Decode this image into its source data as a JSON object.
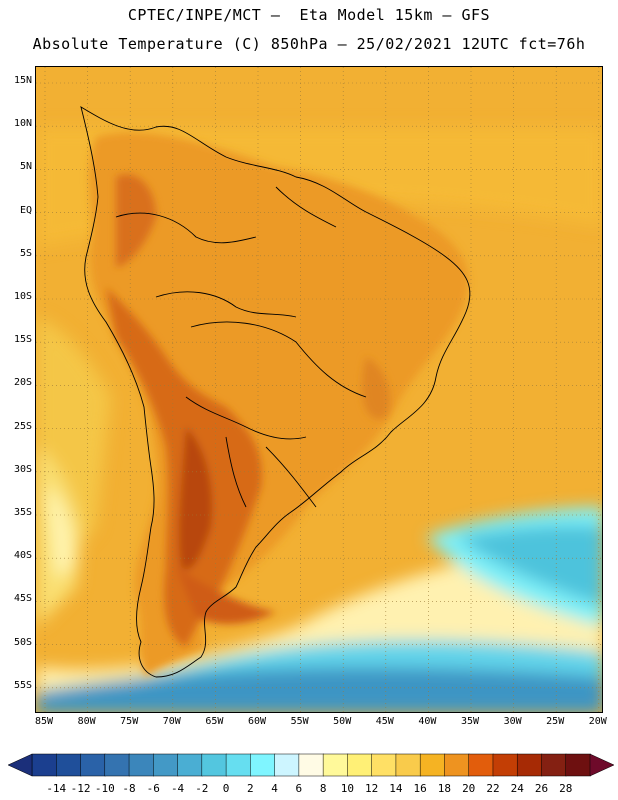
{
  "title_line1": "CPTEC/INPE/MCT —  Eta Model 15km — GFS",
  "title_line2": "Absolute Temperature (C) 850hPa — 25/02/2021 12UTC fct=76h",
  "lat_labels": [
    "15N",
    "10N",
    "5N",
    "EQ",
    "5S",
    "10S",
    "15S",
    "20S",
    "25S",
    "30S",
    "35S",
    "40S",
    "45S",
    "50S",
    "55S"
  ],
  "lon_labels": [
    "85W",
    "80W",
    "75W",
    "70W",
    "65W",
    "60W",
    "55W",
    "50W",
    "45W",
    "40W",
    "35W",
    "30W",
    "25W",
    "20W"
  ],
  "colorbar": {
    "labels": [
      "-14",
      "-12",
      "-10",
      "-8",
      "-6",
      "-4",
      "-2",
      "0",
      "2",
      "4",
      "6",
      "8",
      "10",
      "12",
      "14",
      "16",
      "18",
      "20",
      "22",
      "24",
      "26",
      "28"
    ],
    "colors": [
      "#1b3f8f",
      "#1f4f9a",
      "#2a62a8",
      "#3473b0",
      "#3b86bb",
      "#4399c6",
      "#4aaed3",
      "#53c6df",
      "#66def0",
      "#7ff5ff",
      "#cdf5ff",
      "#fffbe5",
      "#fff99a",
      "#fff076",
      "#ffe065",
      "#f9cb4b",
      "#f5b323",
      "#ee9320",
      "#e25d0c",
      "#c33e05",
      "#a62a05",
      "#842012",
      "#6e1010"
    ]
  },
  "map": {
    "background_color": "#f2b033",
    "land_warm_color": "#e98a22",
    "land_hot_color": "#d46616",
    "cold_color": "#4ab6d6",
    "ice_color": "#7fe6f4"
  }
}
